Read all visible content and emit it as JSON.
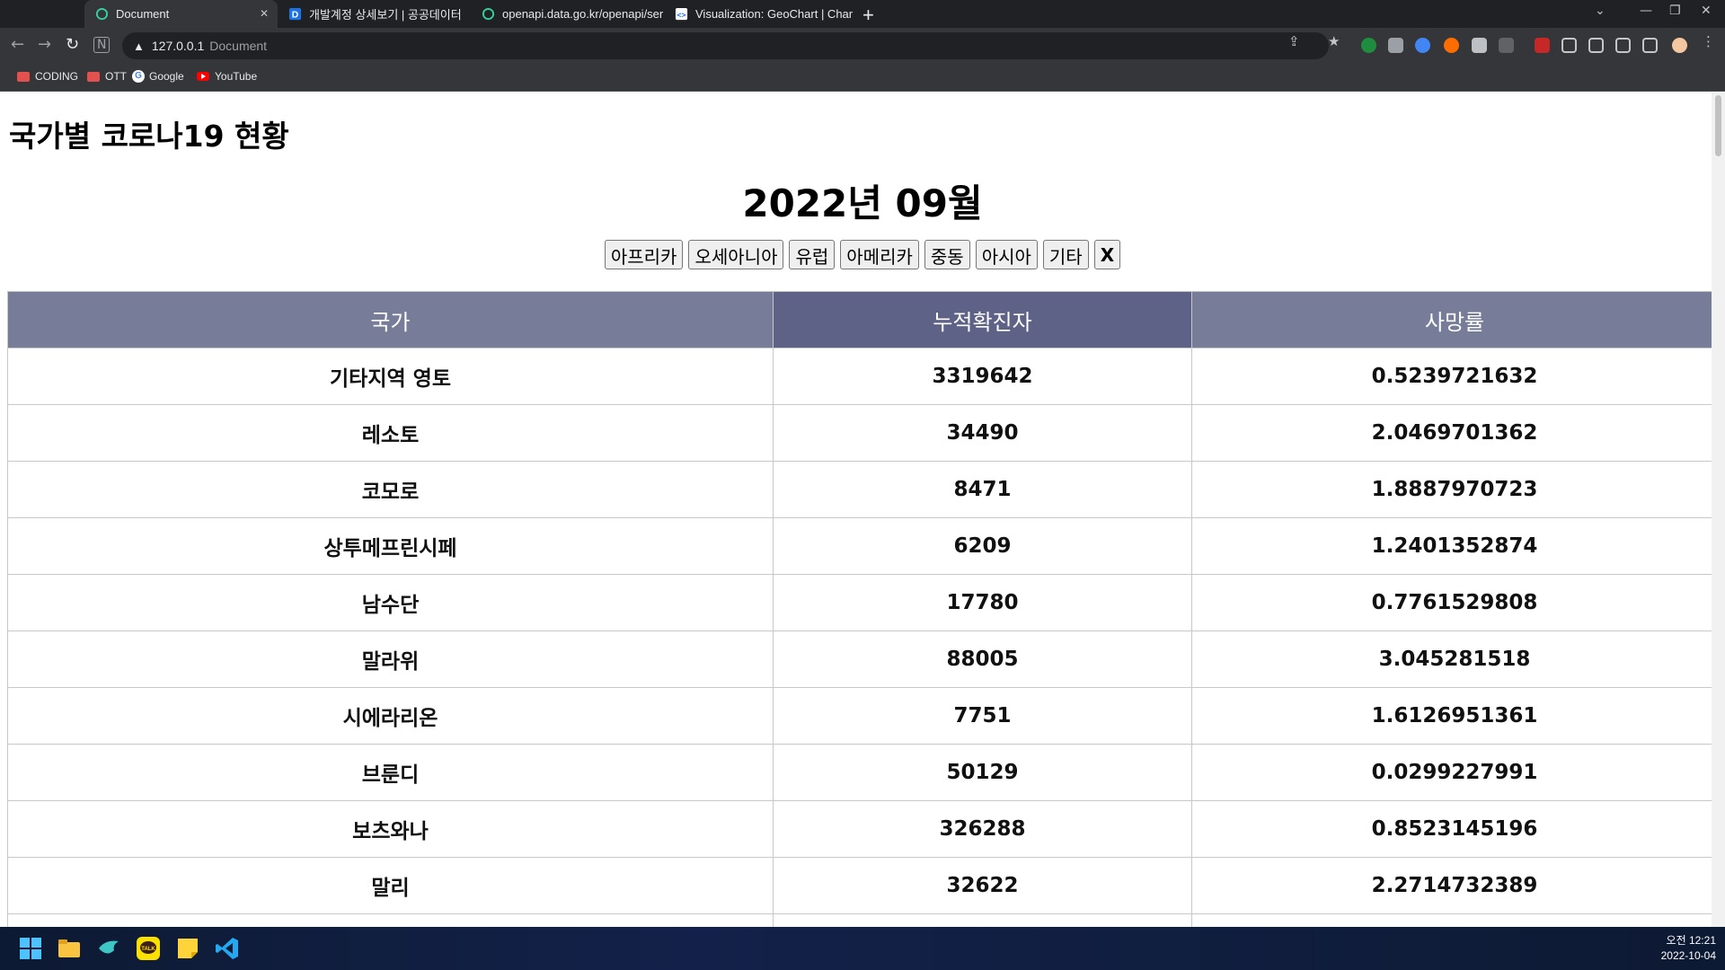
{
  "browser": {
    "tabs": [
      {
        "title": "Document",
        "active": true
      },
      {
        "title": "개발계정 상세보기 | 공공데이터",
        "active": false
      },
      {
        "title": "openapi.data.go.kr/openapi/ser",
        "active": false
      },
      {
        "title": "Visualization: GeoChart  |  Char",
        "active": false
      }
    ],
    "address": {
      "url": "127.0.0.1",
      "page_title": "Document"
    },
    "bookmarks": [
      {
        "label": "CODING",
        "icon": "folder-icon"
      },
      {
        "label": "OTT",
        "icon": "folder-icon"
      },
      {
        "label": "Google",
        "icon": "google-icon"
      },
      {
        "label": "YouTube",
        "icon": "youtube-icon"
      }
    ]
  },
  "page": {
    "title": "국가별 코로나19 현황",
    "month": "2022년 09월",
    "filters": [
      "아프리카",
      "오세아니아",
      "유럽",
      "아메리카",
      "중동",
      "아시아",
      "기타",
      "X"
    ],
    "table": {
      "headers": [
        "국가",
        "누적확진자",
        "사망률"
      ],
      "rows": [
        [
          "기타지역 영토",
          "3319642",
          "0.5239721632"
        ],
        [
          "레소토",
          "34490",
          "2.0469701362"
        ],
        [
          "코모로",
          "8471",
          "1.8887970723"
        ],
        [
          "상투메프린시페",
          "6209",
          "1.2401352874"
        ],
        [
          "남수단",
          "17780",
          "0.7761529808"
        ],
        [
          "말라위",
          "88005",
          "3.045281518"
        ],
        [
          "시에라리온",
          "7751",
          "1.6126951361"
        ],
        [
          "브룬디",
          "50129",
          "0.0299227991"
        ],
        [
          "보츠와나",
          "326288",
          "0.8523145196"
        ],
        [
          "말리",
          "32622",
          "2.2714732389"
        ]
      ]
    }
  },
  "taskbar": {
    "clock_time": "오전 12:21",
    "clock_date": "2022-10-04"
  },
  "colors": {
    "header_bg": "#777c98",
    "header_active_bg": "#5f6287"
  }
}
